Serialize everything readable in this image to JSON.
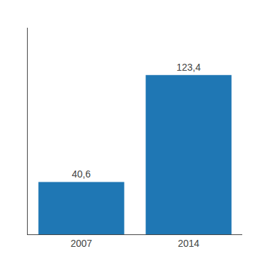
{
  "chart_data": {
    "type": "bar",
    "categories": [
      "2007",
      "2014"
    ],
    "values": [
      40.6,
      123.4
    ],
    "value_labels": [
      "40,6",
      "123,4"
    ],
    "data_labels": true,
    "ylim": [
      0,
      160
    ],
    "tick_labels": "x",
    "grid": false
  }
}
